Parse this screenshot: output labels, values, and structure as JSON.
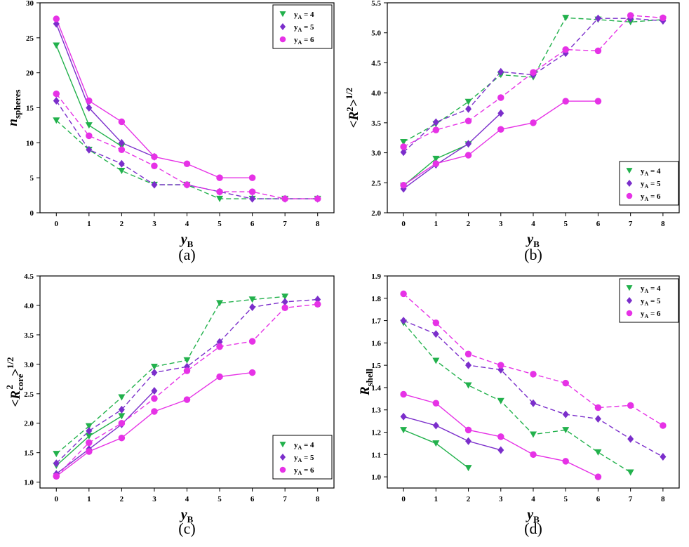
{
  "figure": {
    "legend_labels": [
      "y_A = 4",
      "y_A = 5",
      "y_A = 6"
    ]
  },
  "colors": {
    "yA4": "#22b14c",
    "yA5": "#7b2ecb",
    "yA6": "#e632e6"
  },
  "chart_data": [
    {
      "id": "a",
      "type": "line",
      "panel_label": "(a)",
      "title": "",
      "xlabel": "y_B",
      "ylabel": "n_spheres",
      "xlim": [
        -0.5,
        8.5
      ],
      "ylim": [
        0,
        30
      ],
      "xticks": [
        0,
        1,
        2,
        3,
        4,
        5,
        6,
        7,
        8
      ],
      "yticks": [
        0,
        5,
        10,
        15,
        20,
        25,
        30
      ],
      "legend_loc": "top-right",
      "series": [
        {
          "name": "yA=4 solid",
          "group": "yA4",
          "marker": "triangle",
          "dash": false,
          "x": [
            0,
            1,
            2
          ],
          "y": [
            23.9,
            12.5,
            9.5
          ]
        },
        {
          "name": "yA=4 dashed",
          "group": "yA4",
          "marker": "triangle",
          "dash": true,
          "x": [
            0,
            1,
            2,
            3,
            4,
            5,
            6,
            7,
            8
          ],
          "y": [
            13.2,
            9,
            6,
            4,
            4,
            2,
            2,
            2,
            2
          ]
        },
        {
          "name": "yA=5 solid",
          "group": "yA5",
          "marker": "diamond",
          "dash": false,
          "x": [
            0,
            1,
            2,
            3
          ],
          "y": [
            27,
            15,
            10,
            8
          ]
        },
        {
          "name": "yA=5 dashed",
          "group": "yA5",
          "marker": "diamond",
          "dash": true,
          "x": [
            0,
            1,
            2,
            3,
            4,
            5,
            6,
            7,
            8
          ],
          "y": [
            16,
            9,
            7,
            4,
            4,
            3,
            2,
            2,
            2
          ]
        },
        {
          "name": "yA=6 solid",
          "group": "yA6",
          "marker": "circle",
          "dash": false,
          "x": [
            0,
            1,
            2,
            3,
            4,
            5,
            6
          ],
          "y": [
            27.7,
            16,
            13,
            8,
            7,
            5,
            5
          ]
        },
        {
          "name": "yA=6 dashed",
          "group": "yA6",
          "marker": "circle",
          "dash": true,
          "x": [
            0,
            1,
            2,
            3,
            4,
            5,
            6,
            7,
            8
          ],
          "y": [
            17,
            11,
            9,
            6.7,
            4,
            3,
            3,
            2,
            2
          ]
        }
      ]
    },
    {
      "id": "b",
      "type": "line",
      "panel_label": "(b)",
      "title": "",
      "xlabel": "y_B",
      "ylabel": "<R^2>^1/2",
      "xlim": [
        -0.5,
        8.5
      ],
      "ylim": [
        2.0,
        5.5
      ],
      "xticks": [
        0,
        1,
        2,
        3,
        4,
        5,
        6,
        7,
        8
      ],
      "yticks": [
        2.0,
        2.5,
        3.0,
        3.5,
        4.0,
        4.5,
        5.0,
        5.5
      ],
      "legend_loc": "bottom-right",
      "series": [
        {
          "name": "yA=4 solid",
          "group": "yA4",
          "marker": "triangle",
          "dash": false,
          "x": [
            0,
            1,
            2
          ],
          "y": [
            2.45,
            2.9,
            3.14
          ]
        },
        {
          "name": "yA=4 dashed",
          "group": "yA4",
          "marker": "triangle",
          "dash": true,
          "x": [
            0,
            1,
            2,
            3,
            4,
            5,
            6,
            7,
            8
          ],
          "y": [
            3.18,
            3.48,
            3.85,
            4.3,
            4.26,
            5.25,
            5.22,
            5.18,
            5.22
          ]
        },
        {
          "name": "yA=5 solid",
          "group": "yA5",
          "marker": "diamond",
          "dash": false,
          "x": [
            0,
            1,
            2,
            3
          ],
          "y": [
            2.4,
            2.8,
            3.15,
            3.66
          ]
        },
        {
          "name": "yA=5 dashed",
          "group": "yA5",
          "marker": "diamond",
          "dash": true,
          "x": [
            0,
            1,
            2,
            3,
            4,
            5,
            6,
            7,
            8
          ],
          "y": [
            3.01,
            3.51,
            3.73,
            4.35,
            4.3,
            4.66,
            5.24,
            5.24,
            5.2
          ]
        },
        {
          "name": "yA=6 solid",
          "group": "yA6",
          "marker": "circle",
          "dash": false,
          "x": [
            0,
            1,
            2,
            3,
            4,
            5,
            6
          ],
          "y": [
            2.46,
            2.82,
            2.96,
            3.39,
            3.5,
            3.86,
            3.86
          ]
        },
        {
          "name": "yA=6 dashed",
          "group": "yA6",
          "marker": "circle",
          "dash": true,
          "x": [
            0,
            1,
            2,
            3,
            4,
            5,
            6,
            7,
            8
          ],
          "y": [
            3.1,
            3.38,
            3.53,
            3.92,
            4.34,
            4.72,
            4.7,
            5.29,
            5.25
          ]
        }
      ]
    },
    {
      "id": "c",
      "type": "line",
      "panel_label": "(c)",
      "title": "",
      "xlabel": "y_B",
      "ylabel": "<R_core^2>^1/2",
      "xlim": [
        -0.5,
        8.5
      ],
      "ylim": [
        0.9,
        4.5
      ],
      "xticks": [
        0,
        1,
        2,
        3,
        4,
        5,
        6,
        7,
        8
      ],
      "yticks": [
        1.0,
        1.5,
        2.0,
        2.5,
        3.0,
        3.5,
        4.0,
        4.5
      ],
      "legend_loc": "bottom-right",
      "series": [
        {
          "name": "yA=4 solid",
          "group": "yA4",
          "marker": "triangle",
          "dash": false,
          "x": [
            0,
            1,
            2
          ],
          "y": [
            1.28,
            1.78,
            2.12
          ]
        },
        {
          "name": "yA=4 dashed",
          "group": "yA4",
          "marker": "triangle",
          "dash": true,
          "x": [
            0,
            1,
            2,
            3,
            4,
            5,
            6,
            7
          ],
          "y": [
            1.48,
            1.95,
            2.44,
            2.96,
            3.07,
            4.04,
            4.1,
            4.15
          ]
        },
        {
          "name": "yA=5 solid",
          "group": "yA5",
          "marker": "diamond",
          "dash": false,
          "x": [
            0,
            1,
            2,
            3
          ],
          "y": [
            1.14,
            1.56,
            1.98,
            2.55
          ]
        },
        {
          "name": "yA=5 dashed",
          "group": "yA5",
          "marker": "diamond",
          "dash": true,
          "x": [
            0,
            1,
            2,
            3,
            4,
            5,
            6,
            7,
            8
          ],
          "y": [
            1.32,
            1.87,
            2.23,
            2.86,
            2.96,
            3.38,
            3.97,
            4.06,
            4.1
          ]
        },
        {
          "name": "yA=6 solid",
          "group": "yA6",
          "marker": "circle",
          "dash": false,
          "x": [
            0,
            1,
            2,
            3,
            4,
            5,
            6
          ],
          "y": [
            1.1,
            1.52,
            1.75,
            2.2,
            2.4,
            2.79,
            2.86
          ]
        },
        {
          "name": "yA=6 dashed",
          "group": "yA6",
          "marker": "circle",
          "dash": true,
          "x": [
            0,
            1,
            2,
            3,
            4,
            5,
            6,
            7,
            8
          ],
          "y": [
            1.1,
            1.67,
            2.0,
            2.42,
            2.89,
            3.3,
            3.39,
            3.96,
            4.02
          ]
        }
      ]
    },
    {
      "id": "d",
      "type": "line",
      "panel_label": "(d)",
      "title": "",
      "xlabel": "y_B",
      "ylabel": "R_shell",
      "xlim": [
        -0.5,
        8.5
      ],
      "ylim": [
        0.95,
        1.9
      ],
      "xticks": [
        0,
        1,
        2,
        3,
        4,
        5,
        6,
        7,
        8
      ],
      "yticks": [
        1.0,
        1.1,
        1.2,
        1.3,
        1.4,
        1.5,
        1.6,
        1.7,
        1.8,
        1.9
      ],
      "legend_loc": "top-right",
      "series": [
        {
          "name": "yA=4 solid",
          "group": "yA4",
          "marker": "triangle",
          "dash": false,
          "x": [
            0,
            1,
            2
          ],
          "y": [
            1.21,
            1.15,
            1.04
          ]
        },
        {
          "name": "yA=4 dashed",
          "group": "yA4",
          "marker": "triangle",
          "dash": true,
          "x": [
            0,
            1,
            2,
            3,
            4,
            5,
            6,
            7
          ],
          "y": [
            1.69,
            1.52,
            1.41,
            1.34,
            1.19,
            1.21,
            1.11,
            1.02
          ]
        },
        {
          "name": "yA=5 solid",
          "group": "yA5",
          "marker": "diamond",
          "dash": false,
          "x": [
            0,
            1,
            2,
            3
          ],
          "y": [
            1.27,
            1.23,
            1.16,
            1.12
          ]
        },
        {
          "name": "yA=5 dashed",
          "group": "yA5",
          "marker": "diamond",
          "dash": true,
          "x": [
            0,
            1,
            2,
            3,
            4,
            5,
            6,
            7,
            8
          ],
          "y": [
            1.7,
            1.64,
            1.5,
            1.48,
            1.33,
            1.28,
            1.26,
            1.17,
            1.09
          ]
        },
        {
          "name": "yA=6 solid",
          "group": "yA6",
          "marker": "circle",
          "dash": false,
          "x": [
            0,
            1,
            2,
            3,
            4,
            5,
            6
          ],
          "y": [
            1.37,
            1.33,
            1.21,
            1.18,
            1.1,
            1.07,
            1.0
          ]
        },
        {
          "name": "yA=6 dashed",
          "group": "yA6",
          "marker": "circle",
          "dash": true,
          "x": [
            0,
            1,
            2,
            3,
            4,
            5,
            6,
            7,
            8
          ],
          "y": [
            1.82,
            1.69,
            1.55,
            1.5,
            1.46,
            1.42,
            1.31,
            1.32,
            1.23
          ]
        }
      ]
    }
  ]
}
